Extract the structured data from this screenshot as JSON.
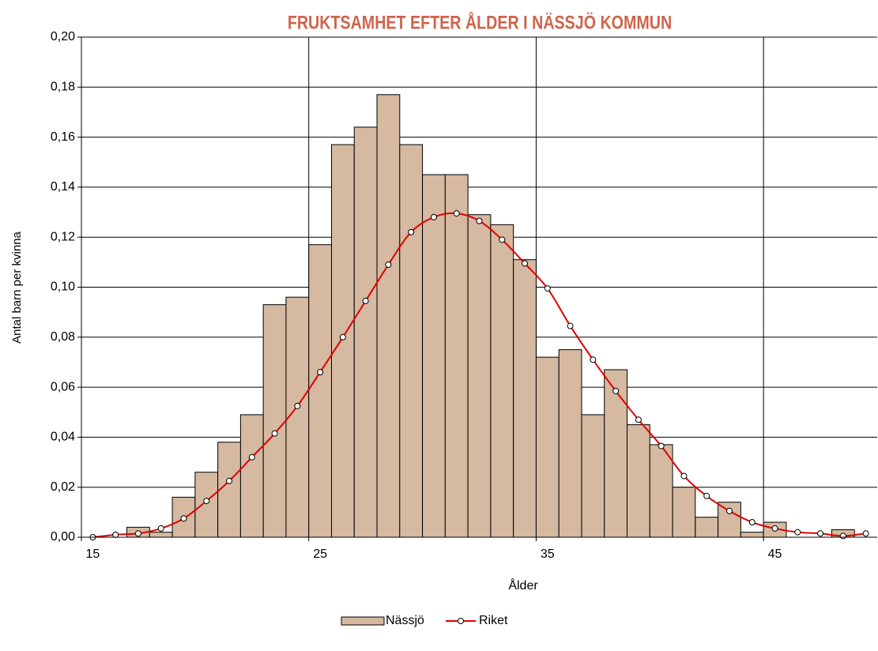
{
  "chart_data": {
    "type": "bar_line",
    "title": "FRUKTSAMHET EFTER ÅLDER I NÄSSJÖ KOMMUN",
    "x_label": "Ålder",
    "y_label": "Antal barn per kvinna",
    "categories": [
      "15",
      null,
      null,
      null,
      null,
      null,
      null,
      null,
      null,
      null,
      "25",
      null,
      null,
      null,
      null,
      null,
      null,
      null,
      null,
      null,
      "35",
      null,
      null,
      null,
      null,
      null,
      null,
      null,
      null,
      null,
      "45",
      null,
      null,
      null,
      null
    ],
    "series": [
      {
        "name": "Nässjö",
        "type": "bar",
        "color": "#d5b9a0",
        "values": [
          0,
          0,
          0.004,
          0.002,
          0.016,
          0.026,
          0.038,
          0.049,
          0.093,
          0.096,
          0.117,
          0.157,
          0.164,
          0.177,
          0.157,
          0.145,
          0.145,
          0.129,
          0.125,
          0.111,
          0.072,
          0.075,
          0.049,
          0.067,
          0.045,
          0.037,
          0.02,
          0.008,
          0.014,
          0.002,
          0.006,
          0,
          0,
          0.003,
          0
        ]
      },
      {
        "name": "Riket",
        "type": "line",
        "color": "#e00000",
        "values": [
          0.0,
          0.001,
          0.0015,
          0.0035,
          0.0075,
          0.0145,
          0.0225,
          0.032,
          0.0415,
          0.0525,
          0.066,
          0.08,
          0.0945,
          0.109,
          0.122,
          0.128,
          0.1295,
          0.1265,
          0.119,
          0.1095,
          0.0995,
          0.0845,
          0.071,
          0.0585,
          0.047,
          0.0365,
          0.0245,
          0.0165,
          0.0105,
          0.006,
          0.0035,
          0.002,
          0.0015,
          0.0005,
          0.0015
        ]
      }
    ],
    "ylim": [
      0,
      0.2
    ],
    "yticks": [
      {
        "value": 0,
        "label": "0,00"
      },
      {
        "value": 0.02,
        "label": "0,02"
      },
      {
        "value": 0.04,
        "label": "0,04"
      },
      {
        "value": 0.06,
        "label": "0,06"
      },
      {
        "value": 0.08,
        "label": "0,08"
      },
      {
        "value": 0.1,
        "label": "0,10"
      },
      {
        "value": 0.12,
        "label": "0,12"
      },
      {
        "value": 0.14,
        "label": "0,14"
      },
      {
        "value": 0.16,
        "label": "0,16"
      },
      {
        "value": 0.18,
        "label": "0,18"
      },
      {
        "value": 0.2,
        "label": "0,20"
      }
    ],
    "grid": true,
    "legend": "bottom"
  }
}
